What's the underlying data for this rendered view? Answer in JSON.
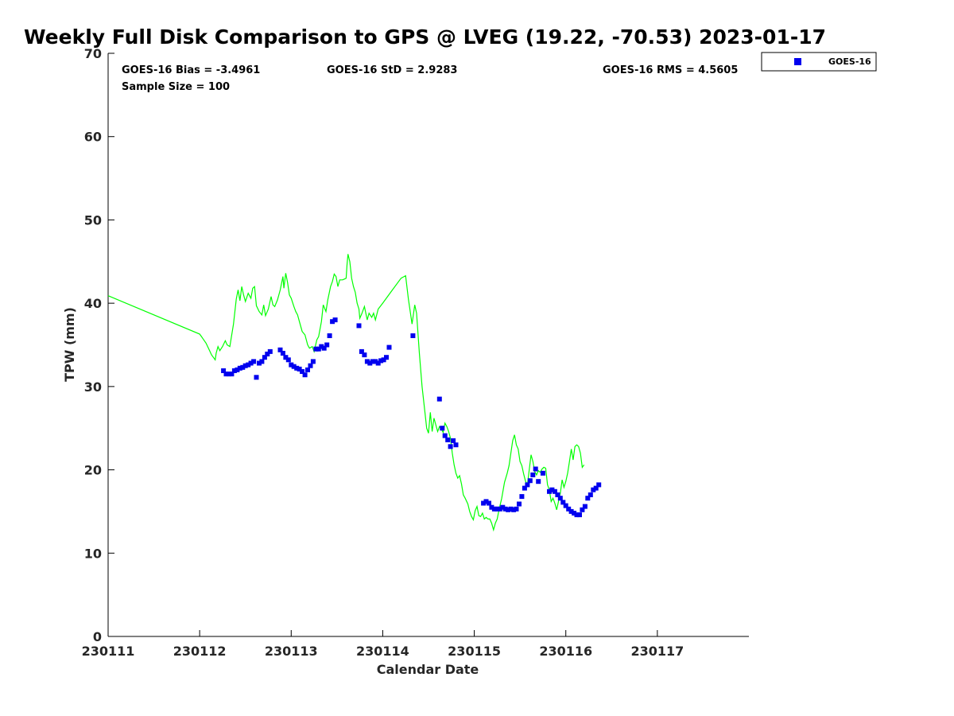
{
  "chart_data": {
    "type": "line",
    "title": "Weekly Full Disk Comparison to GPS @ LVEG (19.22, -70.53) 2023-01-17",
    "xlabel": "Calendar Date",
    "ylabel": "TPW (mm)",
    "xlim": [
      0,
      7
    ],
    "ylim": [
      0,
      70
    ],
    "x_ticks": [
      0,
      1,
      2,
      3,
      4,
      5,
      6
    ],
    "x_tick_labels": [
      "230111",
      "230112",
      "230113",
      "230114",
      "230115",
      "230116",
      "230117"
    ],
    "y_ticks": [
      0,
      10,
      20,
      30,
      40,
      50,
      60,
      70
    ],
    "y_tick_labels": [
      "0",
      "10",
      "20",
      "30",
      "40",
      "50",
      "60",
      "70"
    ],
    "stats": {
      "bias": "GOES-16 Bias = -3.4961",
      "std": "GOES-16 StD = 2.9283",
      "rms": "GOES-16 RMS = 4.5605",
      "sample": "Sample Size = 100"
    },
    "legend": {
      "label": "GOES-16",
      "position": "top-right-outside"
    },
    "gps_series": {
      "name": "GPS",
      "color": "#00ff00",
      "points": [
        [
          0.0,
          40.9
        ],
        [
          1.0,
          36.3
        ],
        [
          1.02,
          36.0
        ],
        [
          1.07,
          35.2
        ],
        [
          1.1,
          34.5
        ],
        [
          1.13,
          33.8
        ],
        [
          1.15,
          33.5
        ],
        [
          1.17,
          33.2
        ],
        [
          1.18,
          34.0
        ],
        [
          1.2,
          34.8
        ],
        [
          1.22,
          34.3
        ],
        [
          1.25,
          34.8
        ],
        [
          1.28,
          35.5
        ],
        [
          1.3,
          35.0
        ],
        [
          1.33,
          34.8
        ],
        [
          1.37,
          37.5
        ],
        [
          1.4,
          40.5
        ],
        [
          1.42,
          41.6
        ],
        [
          1.44,
          40.3
        ],
        [
          1.46,
          42.0
        ],
        [
          1.48,
          41.0
        ],
        [
          1.5,
          40.2
        ],
        [
          1.53,
          41.2
        ],
        [
          1.56,
          40.6
        ],
        [
          1.58,
          41.8
        ],
        [
          1.6,
          42.0
        ],
        [
          1.62,
          39.7
        ],
        [
          1.65,
          39.0
        ],
        [
          1.68,
          38.6
        ],
        [
          1.7,
          39.8
        ],
        [
          1.72,
          38.5
        ],
        [
          1.75,
          39.3
        ],
        [
          1.78,
          40.8
        ],
        [
          1.8,
          39.8
        ],
        [
          1.82,
          39.6
        ],
        [
          1.85,
          40.4
        ],
        [
          1.88,
          41.6
        ],
        [
          1.91,
          43.2
        ],
        [
          1.92,
          41.8
        ],
        [
          1.94,
          43.6
        ],
        [
          1.96,
          42.5
        ],
        [
          1.98,
          41.0
        ],
        [
          2.0,
          40.6
        ],
        [
          2.03,
          39.6
        ],
        [
          2.05,
          39.0
        ],
        [
          2.07,
          38.6
        ],
        [
          2.09,
          37.8
        ],
        [
          2.12,
          36.6
        ],
        [
          2.15,
          36.2
        ],
        [
          2.18,
          35.0
        ],
        [
          2.2,
          34.6
        ],
        [
          2.23,
          34.8
        ],
        [
          2.25,
          34.2
        ],
        [
          2.28,
          35.6
        ],
        [
          2.3,
          36.0
        ],
        [
          2.33,
          37.8
        ],
        [
          2.35,
          39.8
        ],
        [
          2.38,
          39.0
        ],
        [
          2.4,
          40.4
        ],
        [
          2.43,
          42.0
        ],
        [
          2.45,
          42.6
        ],
        [
          2.47,
          43.5
        ],
        [
          2.49,
          43.2
        ],
        [
          2.51,
          42.0
        ],
        [
          2.53,
          42.8
        ],
        [
          2.56,
          42.8
        ],
        [
          2.58,
          42.9
        ],
        [
          2.6,
          43.0
        ],
        [
          2.61,
          44.6
        ],
        [
          2.62,
          45.9
        ],
        [
          2.64,
          45.0
        ],
        [
          2.66,
          43.0
        ],
        [
          2.68,
          42.0
        ],
        [
          2.7,
          41.3
        ],
        [
          2.72,
          40.0
        ],
        [
          2.74,
          39.3
        ],
        [
          2.75,
          38.2
        ],
        [
          2.77,
          38.7
        ],
        [
          2.8,
          39.6
        ],
        [
          2.83,
          38.0
        ],
        [
          2.85,
          38.8
        ],
        [
          2.88,
          38.3
        ],
        [
          2.9,
          38.8
        ],
        [
          2.92,
          38.0
        ],
        [
          2.95,
          39.3
        ],
        [
          3.0,
          40.0
        ],
        [
          3.1,
          41.5
        ],
        [
          3.2,
          43.0
        ],
        [
          3.25,
          43.3
        ],
        [
          3.28,
          40.5
        ],
        [
          3.32,
          37.5
        ],
        [
          3.35,
          39.8
        ],
        [
          3.37,
          38.8
        ],
        [
          3.4,
          34.0
        ],
        [
          3.43,
          30.0
        ],
        [
          3.46,
          27.0
        ],
        [
          3.48,
          25.0
        ],
        [
          3.5,
          24.4
        ],
        [
          3.52,
          26.9
        ],
        [
          3.54,
          24.6
        ],
        [
          3.56,
          26.2
        ],
        [
          3.58,
          25.4
        ],
        [
          3.6,
          24.6
        ],
        [
          3.62,
          25.2
        ],
        [
          3.64,
          24.9
        ],
        [
          3.66,
          24.5
        ],
        [
          3.68,
          25.6
        ],
        [
          3.7,
          25.2
        ],
        [
          3.72,
          24.6
        ],
        [
          3.74,
          23.8
        ],
        [
          3.76,
          22.0
        ],
        [
          3.78,
          20.6
        ],
        [
          3.8,
          19.6
        ],
        [
          3.82,
          19.0
        ],
        [
          3.84,
          19.3
        ],
        [
          3.86,
          18.3
        ],
        [
          3.88,
          17.0
        ],
        [
          3.9,
          16.6
        ],
        [
          3.93,
          15.9
        ],
        [
          3.95,
          15.0
        ],
        [
          3.97,
          14.4
        ],
        [
          3.99,
          14.0
        ],
        [
          4.01,
          15.1
        ],
        [
          4.03,
          15.6
        ],
        [
          4.05,
          14.5
        ],
        [
          4.07,
          14.4
        ],
        [
          4.09,
          14.8
        ],
        [
          4.11,
          14.1
        ],
        [
          4.13,
          14.3
        ],
        [
          4.15,
          14.1
        ],
        [
          4.17,
          14.1
        ],
        [
          4.19,
          13.6
        ],
        [
          4.21,
          12.8
        ],
        [
          4.23,
          13.6
        ],
        [
          4.25,
          14.1
        ],
        [
          4.27,
          15.2
        ],
        [
          4.3,
          16.6
        ],
        [
          4.33,
          18.5
        ],
        [
          4.36,
          19.6
        ],
        [
          4.38,
          20.5
        ],
        [
          4.4,
          22.0
        ],
        [
          4.42,
          23.5
        ],
        [
          4.44,
          24.2
        ],
        [
          4.46,
          23.0
        ],
        [
          4.48,
          22.5
        ],
        [
          4.5,
          21.0
        ],
        [
          4.52,
          20.5
        ],
        [
          4.54,
          19.5
        ],
        [
          4.56,
          18.6
        ],
        [
          4.58,
          18.2
        ],
        [
          4.6,
          20.0
        ],
        [
          4.62,
          21.8
        ],
        [
          4.64,
          21.0
        ],
        [
          4.66,
          19.8
        ],
        [
          4.68,
          19.4
        ],
        [
          4.7,
          19.9
        ],
        [
          4.72,
          19.7
        ],
        [
          4.74,
          20.1
        ],
        [
          4.76,
          20.3
        ],
        [
          4.78,
          20.2
        ],
        [
          4.8,
          18.2
        ],
        [
          4.82,
          17.6
        ],
        [
          4.84,
          16.2
        ],
        [
          4.86,
          16.6
        ],
        [
          4.88,
          16.0
        ],
        [
          4.9,
          15.2
        ],
        [
          4.92,
          16.2
        ],
        [
          4.94,
          17.2
        ],
        [
          4.96,
          18.8
        ],
        [
          4.98,
          17.9
        ],
        [
          5.0,
          18.6
        ],
        [
          5.02,
          19.6
        ],
        [
          5.04,
          21.0
        ],
        [
          5.06,
          22.5
        ],
        [
          5.08,
          21.2
        ],
        [
          5.1,
          22.8
        ],
        [
          5.12,
          23.0
        ],
        [
          5.14,
          22.8
        ],
        [
          5.16,
          22.0
        ],
        [
          5.18,
          20.3
        ],
        [
          5.2,
          20.6
        ]
      ]
    },
    "goes_series": {
      "name": "GOES-16",
      "color": "#0000ee",
      "points": [
        [
          1.26,
          31.9
        ],
        [
          1.29,
          31.5
        ],
        [
          1.32,
          31.5
        ],
        [
          1.35,
          31.5
        ],
        [
          1.38,
          31.9
        ],
        [
          1.41,
          32.0
        ],
        [
          1.44,
          32.2
        ],
        [
          1.47,
          32.3
        ],
        [
          1.5,
          32.5
        ],
        [
          1.53,
          32.6
        ],
        [
          1.56,
          32.8
        ],
        [
          1.59,
          33.0
        ],
        [
          1.62,
          31.1
        ],
        [
          1.65,
          32.8
        ],
        [
          1.68,
          33.0
        ],
        [
          1.71,
          33.5
        ],
        [
          1.74,
          33.9
        ],
        [
          1.77,
          34.2
        ],
        [
          1.88,
          34.4
        ],
        [
          1.91,
          34.0
        ],
        [
          1.94,
          33.5
        ],
        [
          1.97,
          33.2
        ],
        [
          2.0,
          32.6
        ],
        [
          2.03,
          32.4
        ],
        [
          2.06,
          32.2
        ],
        [
          2.09,
          32.1
        ],
        [
          2.12,
          31.8
        ],
        [
          2.15,
          31.4
        ],
        [
          2.18,
          32.0
        ],
        [
          2.21,
          32.5
        ],
        [
          2.24,
          33.0
        ],
        [
          2.27,
          34.5
        ],
        [
          2.3,
          34.5
        ],
        [
          2.33,
          34.8
        ],
        [
          2.36,
          34.6
        ],
        [
          2.39,
          35.0
        ],
        [
          2.42,
          36.1
        ],
        [
          2.45,
          37.8
        ],
        [
          2.48,
          38.0
        ],
        [
          2.74,
          37.3
        ],
        [
          2.77,
          34.2
        ],
        [
          2.8,
          33.8
        ],
        [
          2.83,
          33.0
        ],
        [
          2.86,
          32.8
        ],
        [
          2.89,
          33.0
        ],
        [
          2.92,
          33.0
        ],
        [
          2.95,
          32.8
        ],
        [
          2.98,
          33.1
        ],
        [
          3.01,
          33.2
        ],
        [
          3.04,
          33.5
        ],
        [
          3.07,
          34.7
        ],
        [
          3.33,
          36.1
        ],
        [
          3.62,
          28.5
        ],
        [
          3.65,
          25.0
        ],
        [
          3.68,
          24.1
        ],
        [
          3.71,
          23.6
        ],
        [
          3.74,
          22.8
        ],
        [
          3.77,
          23.5
        ],
        [
          3.8,
          23.0
        ],
        [
          4.1,
          16.0
        ],
        [
          4.13,
          16.2
        ],
        [
          4.16,
          16.0
        ],
        [
          4.19,
          15.5
        ],
        [
          4.22,
          15.3
        ],
        [
          4.25,
          15.3
        ],
        [
          4.28,
          15.3
        ],
        [
          4.31,
          15.5
        ],
        [
          4.34,
          15.3
        ],
        [
          4.37,
          15.2
        ],
        [
          4.4,
          15.3
        ],
        [
          4.43,
          15.2
        ],
        [
          4.46,
          15.3
        ],
        [
          4.49,
          15.9
        ],
        [
          4.52,
          16.8
        ],
        [
          4.55,
          17.8
        ],
        [
          4.58,
          18.2
        ],
        [
          4.61,
          18.7
        ],
        [
          4.64,
          19.4
        ],
        [
          4.67,
          20.1
        ],
        [
          4.7,
          18.6
        ],
        [
          4.75,
          19.6
        ],
        [
          4.82,
          17.4
        ],
        [
          4.85,
          17.6
        ],
        [
          4.88,
          17.4
        ],
        [
          4.91,
          17.0
        ],
        [
          4.94,
          16.6
        ],
        [
          4.97,
          16.1
        ],
        [
          5.0,
          15.7
        ],
        [
          5.03,
          15.3
        ],
        [
          5.06,
          15.0
        ],
        [
          5.09,
          14.8
        ],
        [
          5.12,
          14.6
        ],
        [
          5.15,
          14.6
        ],
        [
          5.18,
          15.2
        ],
        [
          5.21,
          15.6
        ],
        [
          5.24,
          16.6
        ],
        [
          5.27,
          17.0
        ],
        [
          5.3,
          17.6
        ],
        [
          5.33,
          17.8
        ],
        [
          5.36,
          18.2
        ]
      ]
    }
  }
}
